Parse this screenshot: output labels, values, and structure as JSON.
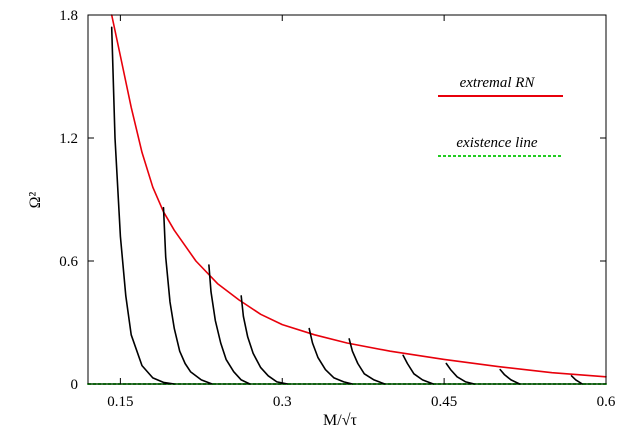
{
  "chart_data": {
    "type": "line",
    "xlabel": "M/√τ",
    "ylabel": "Ω²",
    "xlim": [
      0.12,
      0.6
    ],
    "ylim": [
      0,
      1.8
    ],
    "x_ticks": [
      "0.15",
      "0.3",
      "0.45",
      "0.6"
    ],
    "y_ticks": [
      "0",
      "0.6",
      "1.2",
      "1.8"
    ],
    "grid": false,
    "legend_position": "top-right",
    "legend": [
      {
        "label": "extremal RN",
        "color": "#e8000b",
        "style": "solid"
      },
      {
        "label": "existence line",
        "color": "#22cc22",
        "style": "dashed"
      }
    ],
    "series": [
      {
        "name": "extremal RN",
        "color": "#e8000b",
        "x": [
          0.142,
          0.15,
          0.16,
          0.17,
          0.18,
          0.19,
          0.2,
          0.22,
          0.24,
          0.26,
          0.28,
          0.3,
          0.33,
          0.36,
          0.4,
          0.45,
          0.5,
          0.55,
          0.6
        ],
        "y": [
          1.8,
          1.6,
          1.35,
          1.13,
          0.96,
          0.84,
          0.75,
          0.6,
          0.49,
          0.41,
          0.34,
          0.29,
          0.24,
          0.2,
          0.16,
          0.12,
          0.085,
          0.055,
          0.035
        ]
      },
      {
        "name": "existence line",
        "color": "#22cc22",
        "x": [
          0.12,
          0.6
        ],
        "y": [
          0,
          0
        ]
      },
      {
        "color": "#000000",
        "x": [
          0.142,
          0.145,
          0.15,
          0.155,
          0.16,
          0.17,
          0.18,
          0.19,
          0.2
        ],
        "y": [
          1.74,
          1.2,
          0.72,
          0.43,
          0.24,
          0.09,
          0.03,
          0.008,
          0.0
        ]
      },
      {
        "color": "#000000",
        "x": [
          0.19,
          0.192,
          0.196,
          0.2,
          0.205,
          0.21,
          0.215,
          0.225,
          0.235
        ],
        "y": [
          0.86,
          0.62,
          0.4,
          0.27,
          0.16,
          0.1,
          0.06,
          0.02,
          0.0
        ]
      },
      {
        "color": "#000000",
        "x": [
          0.232,
          0.234,
          0.238,
          0.243,
          0.248,
          0.255,
          0.262,
          0.27
        ],
        "y": [
          0.58,
          0.45,
          0.31,
          0.2,
          0.12,
          0.06,
          0.02,
          0.0
        ]
      },
      {
        "color": "#000000",
        "x": [
          0.262,
          0.264,
          0.268,
          0.273,
          0.28,
          0.287,
          0.295,
          0.305
        ],
        "y": [
          0.43,
          0.33,
          0.23,
          0.15,
          0.08,
          0.04,
          0.01,
          0.0
        ]
      },
      {
        "color": "#000000",
        "x": [
          0.325,
          0.328,
          0.333,
          0.34,
          0.348,
          0.357,
          0.365
        ],
        "y": [
          0.27,
          0.2,
          0.13,
          0.07,
          0.03,
          0.01,
          0.0
        ]
      },
      {
        "color": "#000000",
        "x": [
          0.362,
          0.365,
          0.37,
          0.376,
          0.385,
          0.395
        ],
        "y": [
          0.22,
          0.16,
          0.1,
          0.05,
          0.02,
          0.0
        ]
      },
      {
        "color": "#000000",
        "x": [
          0.412,
          0.416,
          0.422,
          0.43,
          0.44
        ],
        "y": [
          0.14,
          0.1,
          0.05,
          0.02,
          0.0
        ]
      },
      {
        "color": "#000000",
        "x": [
          0.452,
          0.456,
          0.462,
          0.47,
          0.478
        ],
        "y": [
          0.1,
          0.07,
          0.035,
          0.01,
          0.0
        ]
      },
      {
        "color": "#000000",
        "x": [
          0.502,
          0.506,
          0.512,
          0.52
        ],
        "y": [
          0.07,
          0.045,
          0.02,
          0.0
        ]
      },
      {
        "color": "#000000",
        "x": [
          0.568,
          0.572,
          0.578
        ],
        "y": [
          0.04,
          0.02,
          0.0
        ]
      }
    ]
  }
}
